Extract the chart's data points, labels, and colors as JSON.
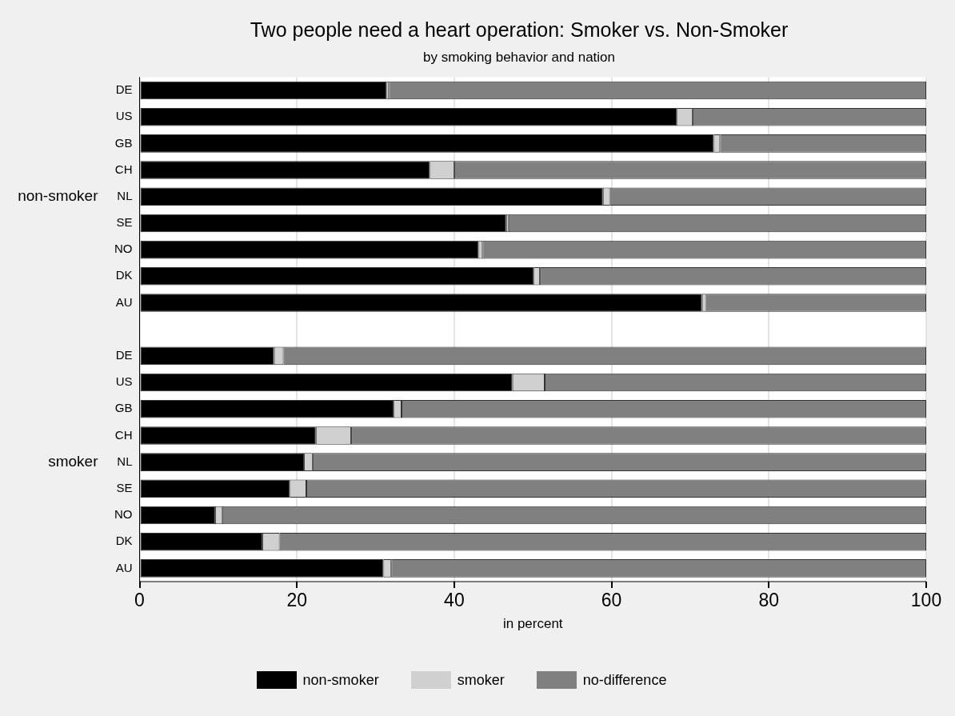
{
  "chart_data": {
    "type": "bar",
    "orientation": "horizontal",
    "stacked": true,
    "title": "Two people need a heart operation: Smoker vs. Non-Smoker",
    "subtitle": "by smoking behavior and nation",
    "xlabel": "in percent",
    "categories": [
      "DE",
      "US",
      "GB",
      "CH",
      "NL",
      "SE",
      "NO",
      "DK",
      "AU",
      null,
      "DE",
      "US",
      "GB",
      "CH",
      "NL",
      "SE",
      "NO",
      "DK",
      "AU"
    ],
    "annotations": [
      "non-smoker",
      "smoker"
    ],
    "series": [
      {
        "name": "non-smoker",
        "color": "#000000",
        "values": [
          31.4,
          68.3,
          73.0,
          36.9,
          58.9,
          46.6,
          43.1,
          50.1,
          71.5,
          null,
          17.1,
          47.4,
          32.3,
          22.4,
          20.9,
          19.1,
          9.6,
          15.6,
          31.0
        ]
      },
      {
        "name": "smoker",
        "color": "#d0d0d0",
        "values": [
          0.3,
          2.0,
          0.8,
          3.1,
          0.9,
          0.3,
          0.5,
          0.8,
          0.5,
          null,
          1.2,
          4.1,
          1.0,
          4.5,
          1.1,
          2.1,
          0.9,
          2.2,
          1.0
        ]
      },
      {
        "name": "no-difference",
        "color": "#808080",
        "values": [
          68.3,
          29.7,
          26.2,
          60.0,
          40.2,
          53.1,
          56.4,
          49.1,
          28.0,
          null,
          81.7,
          48.5,
          66.7,
          73.1,
          78.0,
          78.8,
          89.5,
          82.2,
          68.0
        ]
      }
    ],
    "xlim": [
      0,
      100
    ],
    "xticks": [
      0,
      20,
      40,
      60,
      80,
      100
    ],
    "grid": "x",
    "legend": "bottom"
  }
}
